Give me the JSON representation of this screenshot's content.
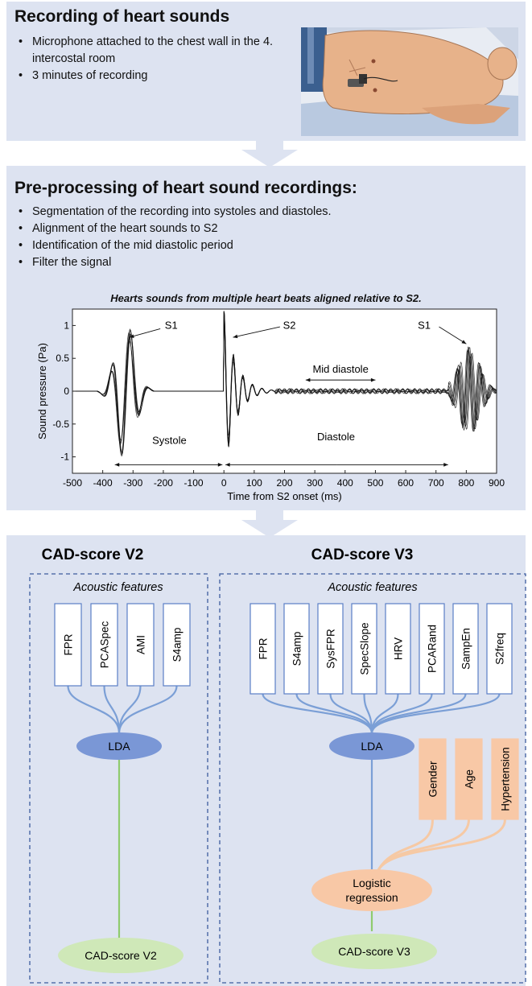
{
  "recording": {
    "title": "Recording of heart sounds",
    "bullets": [
      "Microphone attached to the chest wall in the 4. intercostal room",
      "3 minutes of recording"
    ]
  },
  "preprocessing": {
    "title": "Pre-processing of heart sound recordings:",
    "bullets": [
      "Segmentation of the recording into systoles and diastoles.",
      "Alignment of the heart sounds to S2",
      "Identification of the mid diastolic period",
      "Filter the signal"
    ]
  },
  "chart_data": {
    "type": "line",
    "title": "Hearts sounds from multiple heart beats aligned relative to S2.",
    "xlabel": "Time from S2 onset (ms)",
    "ylabel": "Sound pressure (Pa)",
    "xlim": [
      -500,
      900
    ],
    "ylim": [
      -1.25,
      1.25
    ],
    "xticks": [
      -500,
      -400,
      -300,
      -200,
      -100,
      0,
      100,
      200,
      300,
      400,
      500,
      600,
      700,
      800,
      900
    ],
    "yticks": [
      {
        "value": 1,
        "label": "1"
      },
      {
        "value": 0.5,
        "label": "0.5"
      },
      {
        "value": 0,
        "label": "0"
      },
      {
        "value": -0.5,
        "label": "-0.5"
      },
      {
        "value": -1,
        "label": "-1"
      }
    ],
    "grid": false,
    "annotations": {
      "s1_left": "S1",
      "s2": "S2",
      "s1_right": "S1",
      "mid_diastole": "Mid diastole",
      "systole": "Systole",
      "diastole": "Diastole"
    },
    "segments": {
      "systole": [
        -360,
        0
      ],
      "diastole": [
        0,
        740
      ],
      "mid_diastole": [
        270,
        500
      ]
    }
  },
  "v2": {
    "title": "CAD-score V2",
    "features_label": "Acoustic features",
    "features": [
      "FPR",
      "PCASpec",
      "AMI",
      "S4amp"
    ],
    "classifier": "LDA",
    "output": "CAD-score V2"
  },
  "v3": {
    "title": "CAD-score V3",
    "features_label": "Acoustic features",
    "features": [
      "FPR",
      "S4amp",
      "SysFPR",
      "SpecSlope",
      "HRV",
      "PCARand",
      "SampEn",
      "S2freq"
    ],
    "classifier": "LDA",
    "clinical": [
      "Gender",
      "Age",
      "Hypertension"
    ],
    "regression": [
      "Logistic",
      "regression"
    ],
    "output": "CAD-score V3"
  },
  "colors": {
    "panel": "#dde3f1",
    "lda": "#7a97d6",
    "clinical": "#f8c8a6",
    "output": "#cfe8b8",
    "line_blue": "#7b9fd6",
    "line_green": "#8fcb6e",
    "line_orange": "#f6c9a4"
  }
}
